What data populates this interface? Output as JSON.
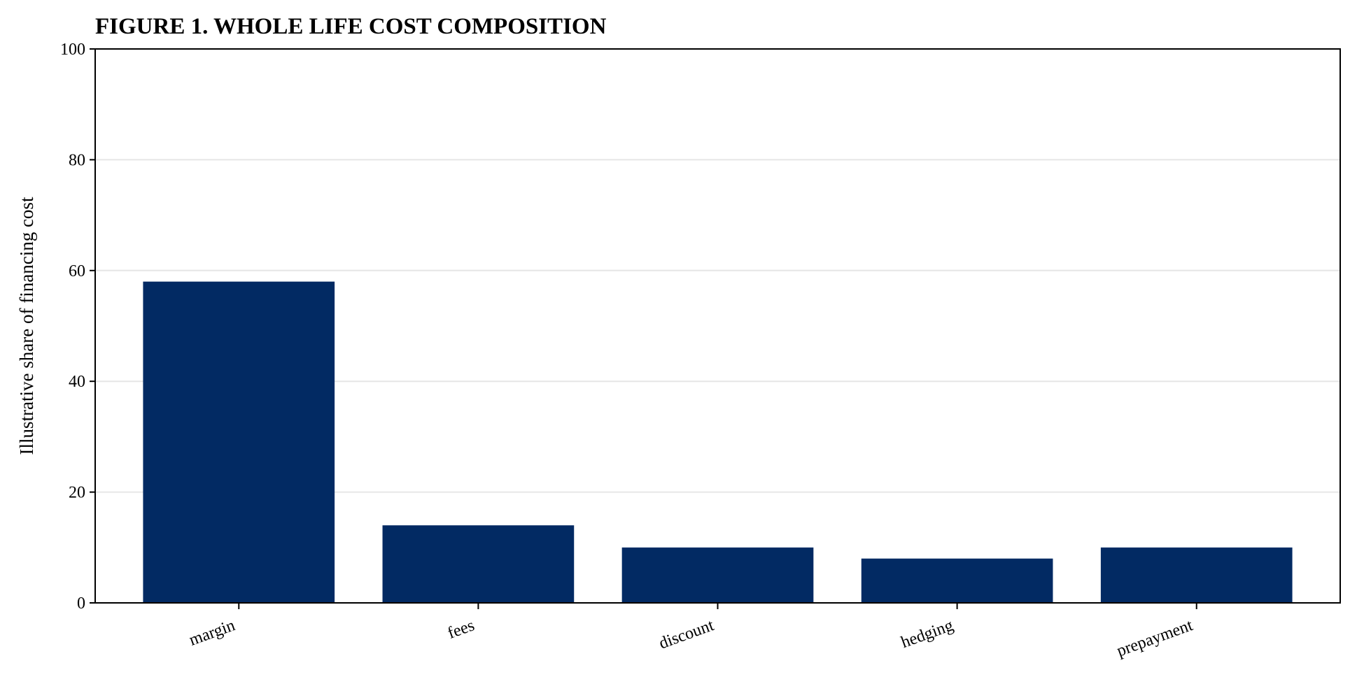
{
  "chart_data": {
    "type": "bar",
    "title": "FIGURE 1. WHOLE LIFE COST COMPOSITION",
    "xlabel": "",
    "ylabel": "Illustrative share of financing cost",
    "categories": [
      "margin",
      "fees",
      "discount",
      "hedging",
      "prepayment"
    ],
    "values": [
      58,
      14,
      10,
      8,
      10
    ],
    "ylim": [
      0,
      100
    ],
    "yticks": [
      0,
      20,
      40,
      60,
      80,
      100
    ],
    "grid": "y",
    "legend": "none",
    "bar_color": "#022a63"
  }
}
